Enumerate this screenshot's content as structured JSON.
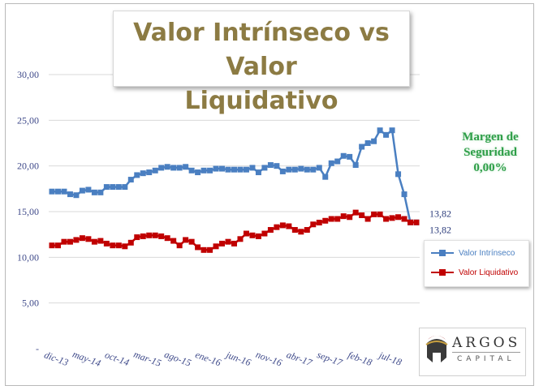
{
  "chart_data": {
    "type": "line",
    "title": "Valor Intrínseco vs Valor Liquidativo",
    "title_lines": [
      "Valor Intrínseco vs Valor",
      "Liquidativo"
    ],
    "yticks": [
      "30,00",
      "25,00",
      "20,00",
      "15,00",
      "10,00",
      "5,00",
      "-"
    ],
    "ylim": [
      0,
      30
    ],
    "xticks": [
      {
        "label": "dic-13",
        "index": 0
      },
      {
        "label": "may-14",
        "index": 5
      },
      {
        "label": "oct-14",
        "index": 10
      },
      {
        "label": "mar-15",
        "index": 15
      },
      {
        "label": "ago-15",
        "index": 20
      },
      {
        "label": "ene-16",
        "index": 25
      },
      {
        "label": "jun-16",
        "index": 30
      },
      {
        "label": "nov-16",
        "index": 35
      },
      {
        "label": "abr-17",
        "index": 40
      },
      {
        "label": "sep-17",
        "index": 45
      },
      {
        "label": "feb-18",
        "index": 50
      },
      {
        "label": "jul-18",
        "index": 55
      }
    ],
    "grid": "horizontal",
    "legend_position": "right",
    "series": [
      {
        "name": "Valor Intrínseco",
        "color": "#4a7fc1",
        "values": [
          17.2,
          17.2,
          17.2,
          16.9,
          16.8,
          17.3,
          17.4,
          17.1,
          17.1,
          17.7,
          17.7,
          17.7,
          17.7,
          18.5,
          19.0,
          19.2,
          19.3,
          19.5,
          19.8,
          19.9,
          19.8,
          19.8,
          19.9,
          19.5,
          19.3,
          19.5,
          19.5,
          19.7,
          19.7,
          19.6,
          19.6,
          19.6,
          19.6,
          19.8,
          19.3,
          19.8,
          20.1,
          20.0,
          19.4,
          19.6,
          19.6,
          19.7,
          19.6,
          19.6,
          19.8,
          18.8,
          20.3,
          20.5,
          21.1,
          21.0,
          20.1,
          22.1,
          22.5,
          22.7,
          23.9,
          23.4,
          23.9,
          19.1,
          16.9,
          13.82,
          13.82
        ]
      },
      {
        "name": "Valor Liquidativo",
        "color": "#c00000",
        "values": [
          11.3,
          11.3,
          11.7,
          11.7,
          11.9,
          12.1,
          12.0,
          11.7,
          11.8,
          11.5,
          11.3,
          11.3,
          11.2,
          11.6,
          12.2,
          12.3,
          12.4,
          12.4,
          12.3,
          12.1,
          11.8,
          11.3,
          11.9,
          11.7,
          11.1,
          10.8,
          10.8,
          11.2,
          11.5,
          11.7,
          11.5,
          12.0,
          12.6,
          12.4,
          12.3,
          12.6,
          13.0,
          13.3,
          13.5,
          13.4,
          13.0,
          12.8,
          13.0,
          13.6,
          13.8,
          14.0,
          14.2,
          14.2,
          14.5,
          14.4,
          14.9,
          14.6,
          14.2,
          14.7,
          14.7,
          14.2,
          14.3,
          14.4,
          14.2,
          13.82,
          13.82
        ]
      }
    ],
    "end_labels": [
      "13,82",
      "13,82"
    ]
  },
  "annotation": {
    "line1": "Margen de",
    "line2": "Seguridad",
    "line3": "0,00%",
    "color": "#2e9e48"
  },
  "logo": {
    "name": "ARGOS",
    "sub": "CAPITAL"
  }
}
